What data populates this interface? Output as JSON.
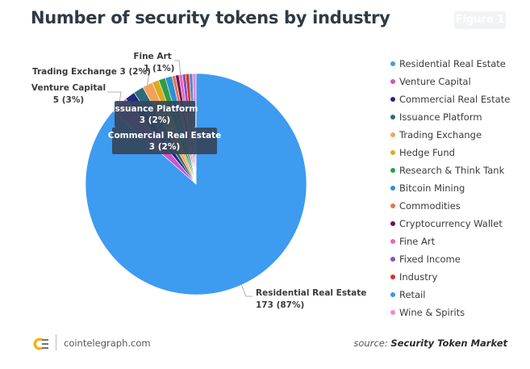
{
  "header": {
    "title": "Number of security tokens by industry",
    "figure_label": "Figure 1"
  },
  "chart_data": {
    "type": "pie",
    "title": "Number of security tokens by industry",
    "slices": [
      {
        "name": "Residential Real Estate",
        "value": 173,
        "label": "173 (87%)",
        "color": "#3d9bf0"
      },
      {
        "name": "Venture Capital",
        "value": 5,
        "label": "5 (3%)",
        "color": "#cc55cc"
      },
      {
        "name": "Commercial Real Estate",
        "value": 3,
        "label": "3 (2%)",
        "color": "#1f2a80"
      },
      {
        "name": "Issuance Platform",
        "value": 3,
        "label": "3 (2%)",
        "color": "#2c6d7a"
      },
      {
        "name": "Trading Exchange",
        "value": 3,
        "label": "3 (2%)",
        "color": "#f2a25a"
      },
      {
        "name": "Hedge Fund",
        "value": 2,
        "color": "#d9ad1e"
      },
      {
        "name": "Research & Think Tank",
        "value": 2,
        "color": "#2f9e44"
      },
      {
        "name": "Bitcoin Mining",
        "value": 2,
        "color": "#2e8ed8"
      },
      {
        "name": "Commodities",
        "value": 1,
        "color": "#e8744a"
      },
      {
        "name": "Cryptocurrency Wallet",
        "value": 1,
        "color": "#6b1060"
      },
      {
        "name": "Fine Art",
        "value": 1,
        "label": "1 (1%)",
        "color": "#e667b5"
      },
      {
        "name": "Fixed Income",
        "value": 1,
        "color": "#8a4fc2"
      },
      {
        "name": "Industry",
        "value": 1,
        "color": "#d93025"
      },
      {
        "name": "Retail",
        "value": 1,
        "color": "#4a90d9"
      },
      {
        "name": "Wine & Spirits",
        "value": 1,
        "color": "#ff80c8"
      }
    ],
    "callouts": [
      {
        "name": "Residential Real Estate",
        "value": "173 (87%)"
      },
      {
        "name": "Venture Capital",
        "value": "5 (3%)"
      },
      {
        "name": "Trading Exchange",
        "value": "3 (2%)"
      },
      {
        "name": "Fine Art",
        "value": "1 (1%)"
      }
    ],
    "tooltips": [
      {
        "name": "Issuance Platform",
        "value": "3 (2%)"
      },
      {
        "name": "Commercial Real Estate",
        "value": "3 (2%)"
      }
    ],
    "legend_position": "right"
  },
  "footer": {
    "site": "cointelegraph.com",
    "source_prefix": "source:",
    "source_name": "Security Token Market"
  }
}
